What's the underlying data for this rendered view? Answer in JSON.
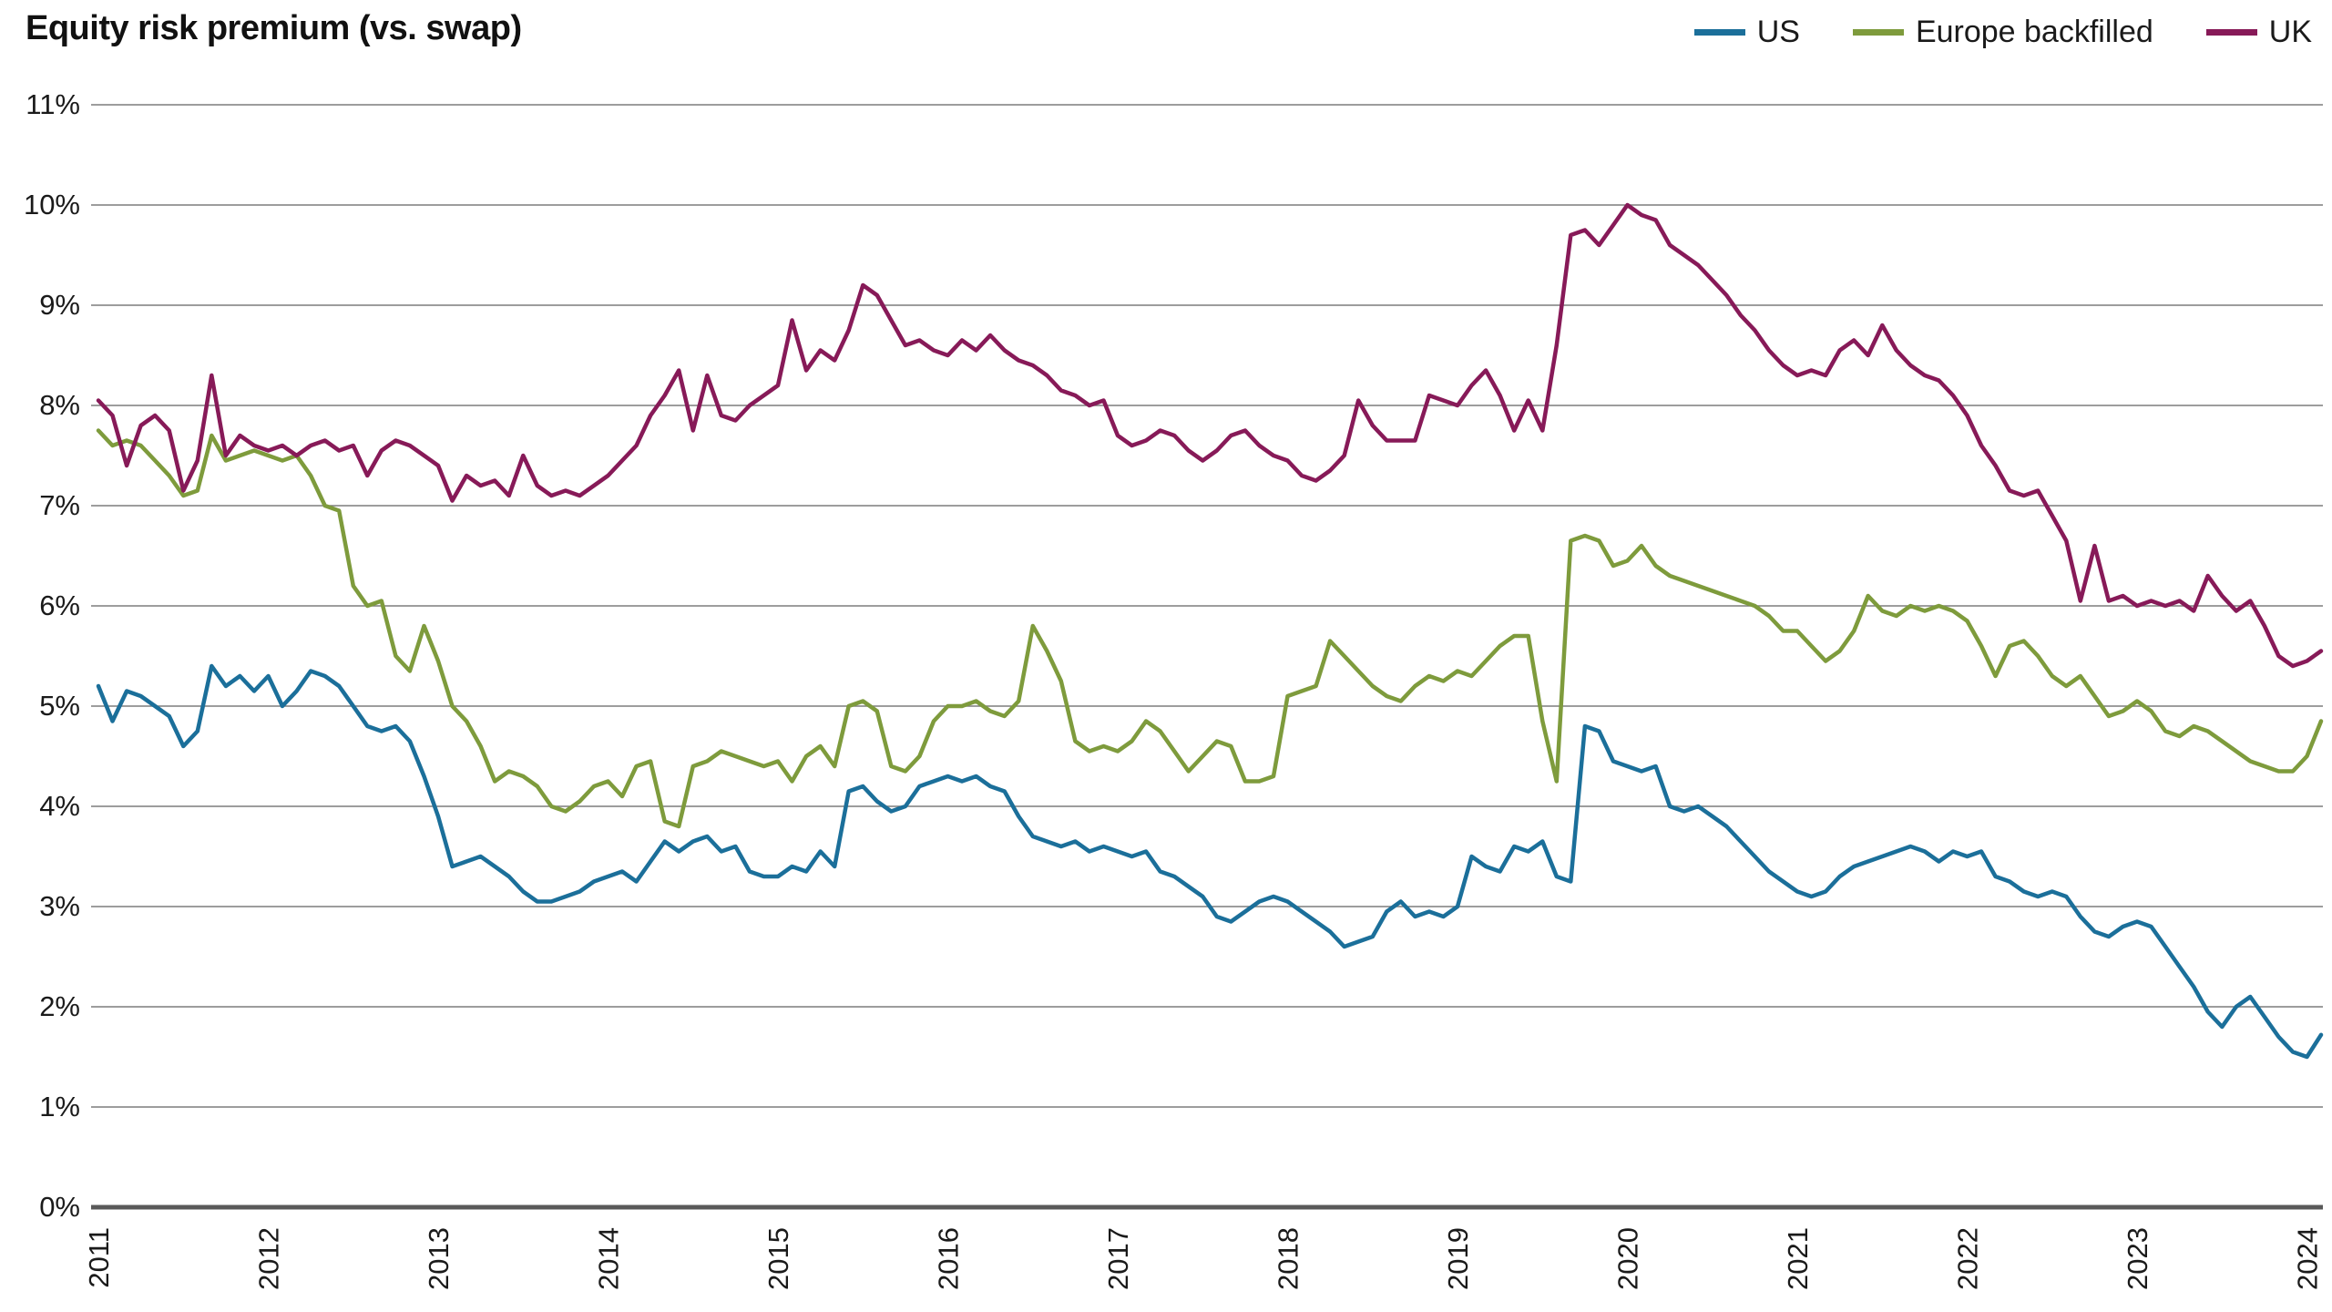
{
  "chart_data": {
    "type": "line",
    "title": "Equity risk premium (vs. swap)",
    "legend_position": "top-right",
    "x_axis": {
      "start_year": 2011,
      "points_per_year": 12,
      "tick_labels": [
        "2011",
        "2012",
        "2013",
        "2014",
        "2015",
        "2016",
        "2017",
        "2018",
        "2019",
        "2020",
        "2021",
        "2022",
        "2023",
        "2024"
      ]
    },
    "y_axis": {
      "min": 0,
      "max": 11,
      "tick_step": 1,
      "tick_labels": [
        "0%",
        "1%",
        "2%",
        "3%",
        "4%",
        "5%",
        "6%",
        "7%",
        "8%",
        "9%",
        "10%",
        "11%"
      ]
    },
    "grid": {
      "horizontal": true,
      "color": "#7d7d7d",
      "axis_color": "#595959"
    },
    "series": [
      {
        "name": "US",
        "color": "#1b6f9a",
        "values": [
          5.2,
          4.85,
          5.15,
          5.1,
          5.0,
          4.9,
          4.6,
          4.75,
          5.4,
          5.2,
          5.3,
          5.15,
          5.3,
          5.0,
          5.15,
          5.35,
          5.3,
          5.2,
          5.0,
          4.8,
          4.75,
          4.8,
          4.65,
          4.3,
          3.9,
          3.4,
          3.45,
          3.5,
          3.4,
          3.3,
          3.15,
          3.05,
          3.05,
          3.1,
          3.15,
          3.25,
          3.3,
          3.35,
          3.25,
          3.45,
          3.65,
          3.55,
          3.65,
          3.7,
          3.55,
          3.6,
          3.35,
          3.3,
          3.3,
          3.4,
          3.35,
          3.55,
          3.4,
          4.15,
          4.2,
          4.05,
          3.95,
          4.0,
          4.2,
          4.25,
          4.3,
          4.25,
          4.3,
          4.2,
          4.15,
          3.9,
          3.7,
          3.65,
          3.6,
          3.65,
          3.55,
          3.6,
          3.55,
          3.5,
          3.55,
          3.35,
          3.3,
          3.2,
          3.1,
          2.9,
          2.85,
          2.95,
          3.05,
          3.1,
          3.05,
          2.95,
          2.85,
          2.75,
          2.6,
          2.65,
          2.7,
          2.95,
          3.05,
          2.9,
          2.95,
          2.9,
          3.0,
          3.5,
          3.4,
          3.35,
          3.6,
          3.55,
          3.65,
          3.3,
          3.25,
          4.8,
          4.75,
          4.45,
          4.4,
          4.35,
          4.4,
          4.0,
          3.95,
          4.0,
          3.9,
          3.8,
          3.65,
          3.5,
          3.35,
          3.25,
          3.15,
          3.1,
          3.15,
          3.3,
          3.4,
          3.45,
          3.5,
          3.55,
          3.6,
          3.55,
          3.45,
          3.55,
          3.5,
          3.55,
          3.3,
          3.25,
          3.15,
          3.1,
          3.15,
          3.1,
          2.9,
          2.75,
          2.7,
          2.8,
          2.85,
          2.8,
          2.6,
          2.4,
          2.2,
          1.95,
          1.8,
          2.0,
          2.1,
          1.9,
          1.7,
          1.55,
          1.5,
          1.72
        ]
      },
      {
        "name": "Europe backfilled",
        "color": "#7e9b3c",
        "values": [
          7.75,
          7.6,
          7.65,
          7.6,
          7.45,
          7.3,
          7.1,
          7.15,
          7.7,
          7.45,
          7.5,
          7.55,
          7.5,
          7.45,
          7.5,
          7.3,
          7.0,
          6.95,
          6.2,
          6.0,
          6.05,
          5.5,
          5.35,
          5.8,
          5.45,
          5.0,
          4.85,
          4.6,
          4.25,
          4.35,
          4.3,
          4.2,
          4.0,
          3.95,
          4.05,
          4.2,
          4.25,
          4.1,
          4.4,
          4.45,
          3.85,
          3.8,
          4.4,
          4.45,
          4.55,
          4.5,
          4.45,
          4.4,
          4.45,
          4.25,
          4.5,
          4.6,
          4.4,
          5.0,
          5.05,
          4.95,
          4.4,
          4.35,
          4.5,
          4.85,
          5.0,
          5.0,
          5.05,
          4.95,
          4.9,
          5.05,
          5.8,
          5.55,
          5.25,
          4.65,
          4.55,
          4.6,
          4.55,
          4.65,
          4.85,
          4.75,
          4.55,
          4.35,
          4.5,
          4.65,
          4.6,
          4.25,
          4.25,
          4.3,
          5.1,
          5.15,
          5.2,
          5.65,
          5.5,
          5.35,
          5.2,
          5.1,
          5.05,
          5.2,
          5.3,
          5.25,
          5.35,
          5.3,
          5.45,
          5.6,
          5.7,
          5.7,
          4.85,
          4.25,
          6.65,
          6.7,
          6.65,
          6.4,
          6.45,
          6.6,
          6.4,
          6.3,
          6.25,
          6.2,
          6.15,
          6.1,
          6.05,
          6.0,
          5.9,
          5.75,
          5.75,
          5.6,
          5.45,
          5.55,
          5.75,
          6.1,
          5.95,
          5.9,
          6.0,
          5.95,
          6.0,
          5.95,
          5.85,
          5.6,
          5.3,
          5.6,
          5.65,
          5.5,
          5.3,
          5.2,
          5.3,
          5.1,
          4.9,
          4.95,
          5.05,
          4.95,
          4.75,
          4.7,
          4.8,
          4.75,
          4.65,
          4.55,
          4.45,
          4.4,
          4.35,
          4.35,
          4.5,
          4.85
        ]
      },
      {
        "name": "UK",
        "color": "#871a58",
        "values": [
          8.05,
          7.9,
          7.4,
          7.8,
          7.9,
          7.75,
          7.15,
          7.45,
          8.3,
          7.5,
          7.7,
          7.6,
          7.55,
          7.6,
          7.5,
          7.6,
          7.65,
          7.55,
          7.6,
          7.3,
          7.55,
          7.65,
          7.6,
          7.5,
          7.4,
          7.05,
          7.3,
          7.2,
          7.25,
          7.1,
          7.5,
          7.2,
          7.1,
          7.15,
          7.1,
          7.2,
          7.3,
          7.45,
          7.6,
          7.9,
          8.1,
          8.35,
          7.75,
          8.3,
          7.9,
          7.85,
          8.0,
          8.1,
          8.2,
          8.85,
          8.35,
          8.55,
          8.45,
          8.75,
          9.2,
          9.1,
          8.85,
          8.6,
          8.65,
          8.55,
          8.5,
          8.65,
          8.55,
          8.7,
          8.55,
          8.45,
          8.4,
          8.3,
          8.15,
          8.1,
          8.0,
          8.05,
          7.7,
          7.6,
          7.65,
          7.75,
          7.7,
          7.55,
          7.45,
          7.55,
          7.7,
          7.75,
          7.6,
          7.5,
          7.45,
          7.3,
          7.25,
          7.35,
          7.5,
          8.05,
          7.8,
          7.65,
          7.65,
          7.65,
          8.1,
          8.05,
          8.0,
          8.2,
          8.35,
          8.1,
          7.75,
          8.05,
          7.75,
          8.6,
          9.7,
          9.75,
          9.6,
          9.8,
          10.0,
          9.9,
          9.85,
          9.6,
          9.5,
          9.4,
          9.25,
          9.1,
          8.9,
          8.75,
          8.55,
          8.4,
          8.3,
          8.35,
          8.3,
          8.55,
          8.65,
          8.5,
          8.8,
          8.55,
          8.4,
          8.3,
          8.25,
          8.1,
          7.9,
          7.6,
          7.4,
          7.15,
          7.1,
          7.15,
          6.9,
          6.65,
          6.05,
          6.6,
          6.05,
          6.1,
          6.0,
          6.05,
          6.0,
          6.05,
          5.95,
          6.3,
          6.1,
          5.95,
          6.05,
          5.8,
          5.5,
          5.4,
          5.45,
          5.55
        ]
      }
    ]
  }
}
